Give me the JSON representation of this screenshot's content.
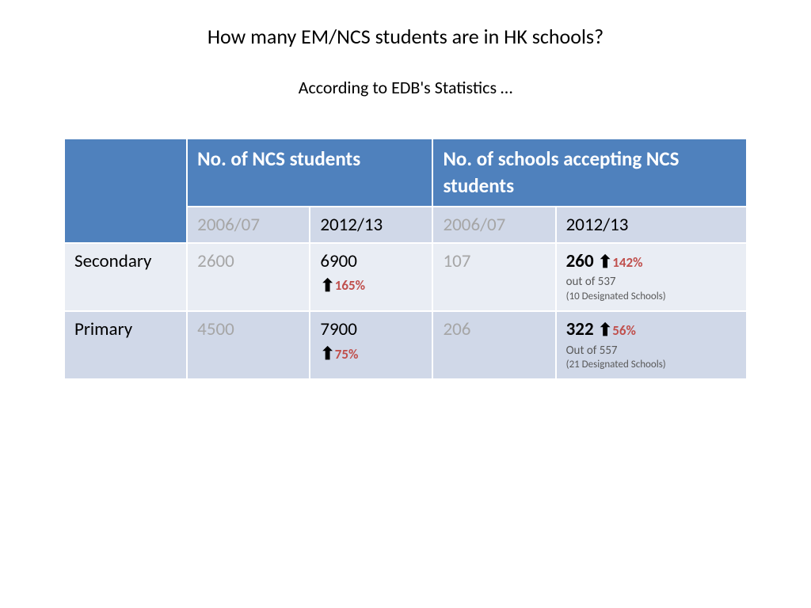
{
  "title": "How many EM/NCS students are in HK schools?",
  "subtitle": "According to EDB's Statistics …",
  "table": {
    "header_main_1": "No. of NCS students",
    "header_main_2": "No. of schools accepting NCS students",
    "year_1": "2006/07",
    "year_2": "2012/13",
    "rows": [
      {
        "label": "Secondary",
        "students_0607": "2600",
        "students_1213": "6900",
        "students_pct": "165%",
        "schools_0607": "107",
        "schools_1213": "260",
        "schools_pct": "142%",
        "schools_outof": "out of 537",
        "schools_designated": "(10 Designated Schools)"
      },
      {
        "label": "Primary",
        "students_0607": "4500",
        "students_1213": "7900",
        "students_pct": "75%",
        "schools_0607": "206",
        "schools_1213": "322",
        "schools_pct": "56%",
        "schools_outof": "Out of 557",
        "schools_designated": "(21 Designated Schools)"
      }
    ]
  },
  "style": {
    "header_bg": "#4f81bd",
    "band_a_bg": "#e9edf4",
    "band_b_bg": "#d0d8e8",
    "grey_text": "#a6a6a6",
    "accent_red": "#c0504d",
    "title_fontsize": 26,
    "subtitle_fontsize": 22,
    "header_fontsize": 25,
    "cell_fontsize": 23,
    "pct_fontsize": 17
  }
}
